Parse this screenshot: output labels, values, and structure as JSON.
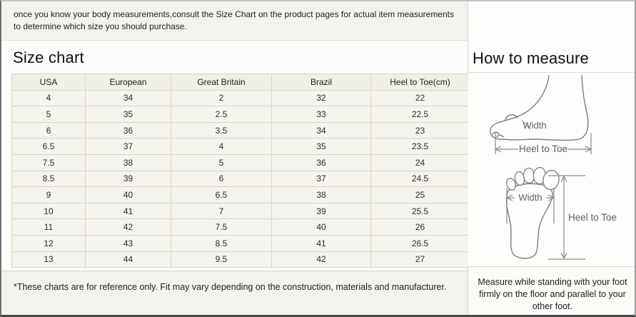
{
  "page": {
    "intro": "once you know your body measurements,consult the Size Chart on the product pages for actual item measurements to determine which size you should purchase."
  },
  "size_chart": {
    "title": "Size chart",
    "columns": [
      "USA",
      "European",
      "Great Britain",
      "Brazil",
      "Heel to Toe(cm)"
    ],
    "rows": [
      [
        "4",
        "34",
        "2",
        "32",
        "22"
      ],
      [
        "5",
        "35",
        "2.5",
        "33",
        "22.5"
      ],
      [
        "6",
        "36",
        "3.5",
        "34",
        "23"
      ],
      [
        "6.5",
        "37",
        "4",
        "35",
        "23.5"
      ],
      [
        "7.5",
        "38",
        "5",
        "36",
        "24"
      ],
      [
        "8.5",
        "39",
        "6",
        "37",
        "24.5"
      ],
      [
        "9",
        "40",
        "6.5",
        "38",
        "25"
      ],
      [
        "10",
        "41",
        "7",
        "39",
        "25.5"
      ],
      [
        "11",
        "42",
        "7.5",
        "40",
        "26"
      ],
      [
        "12",
        "43",
        "8.5",
        "41",
        "26.5"
      ],
      [
        "13",
        "44",
        "9.5",
        "42",
        "27"
      ]
    ],
    "footnote": "*These charts are for reference only. Fit may vary depending on the construction, materials and manufacturer."
  },
  "how_to_measure": {
    "title": "How to measure",
    "side_view": {
      "width_label": "Width",
      "length_label": "Heel to Toe"
    },
    "top_view": {
      "width_label": "Width",
      "length_label": "Heel to Toe"
    },
    "instruction": "Measure while standing with your foot firmly on the floor and parallel to your other foot."
  },
  "colors": {
    "table_cell_bg": "#f5f4ee",
    "table_header_bg": "#f0efe8",
    "table_border": "#d9d6c2",
    "band_bg": "#f3f2ef",
    "diagram_stroke": "#7d7d7d",
    "measure_stroke": "#8a8a8a",
    "label_color": "#5f5f5f"
  }
}
